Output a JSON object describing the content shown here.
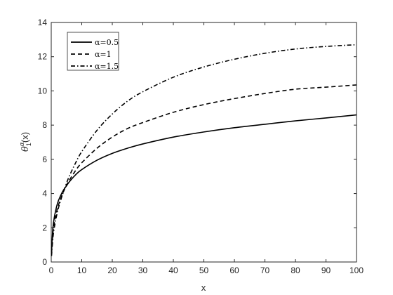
{
  "chart_data": {
    "type": "line",
    "title": "",
    "xlabel": "x",
    "ylabel": {
      "base": "θ",
      "superscript": "α",
      "subscript": "1",
      "suffix": "(x)"
    },
    "xlim": [
      0,
      100
    ],
    "ylim": [
      0,
      14
    ],
    "xticks": [
      "0",
      "10",
      "20",
      "30",
      "40",
      "50",
      "60",
      "70",
      "80",
      "90",
      "100"
    ],
    "yticks": [
      "0",
      "2",
      "4",
      "6",
      "8",
      "10",
      "12",
      "14"
    ],
    "grid": false,
    "legend_position": "top-left",
    "series": [
      {
        "name": "α=0.5",
        "style": "solid",
        "color": "#000000",
        "x": [
          0.1,
          0.5,
          1,
          2,
          3,
          4,
          5,
          6,
          8,
          10,
          15,
          20,
          25,
          30,
          40,
          50,
          60,
          70,
          80,
          90,
          100
        ],
        "y": [
          0.6,
          1.9,
          2.6,
          3.4,
          3.85,
          4.2,
          4.45,
          4.7,
          5.1,
          5.4,
          5.95,
          6.35,
          6.65,
          6.9,
          7.3,
          7.6,
          7.85,
          8.05,
          8.25,
          8.42,
          8.6
        ]
      },
      {
        "name": "α=1",
        "style": "dashed",
        "color": "#000000",
        "x": [
          0.1,
          0.5,
          1,
          2,
          3,
          4,
          5,
          6,
          8,
          10,
          15,
          20,
          25,
          30,
          40,
          50,
          60,
          70,
          80,
          90,
          100
        ],
        "y": [
          0.45,
          1.6,
          2.3,
          3.1,
          3.65,
          4.1,
          4.5,
          4.8,
          5.35,
          5.8,
          6.65,
          7.3,
          7.8,
          8.15,
          8.75,
          9.2,
          9.55,
          9.85,
          10.1,
          10.22,
          10.35
        ]
      },
      {
        "name": "α=1.5",
        "style": "dashdot",
        "color": "#000000",
        "x": [
          0.1,
          0.5,
          1,
          2,
          3,
          4,
          5,
          6,
          8,
          10,
          15,
          20,
          25,
          30,
          40,
          50,
          60,
          70,
          80,
          90,
          100
        ],
        "y": [
          0.35,
          1.3,
          2.0,
          2.9,
          3.55,
          4.1,
          4.6,
          5.05,
          5.8,
          6.45,
          7.7,
          8.65,
          9.4,
          9.95,
          10.8,
          11.4,
          11.85,
          12.2,
          12.45,
          12.6,
          12.7
        ]
      }
    ]
  }
}
